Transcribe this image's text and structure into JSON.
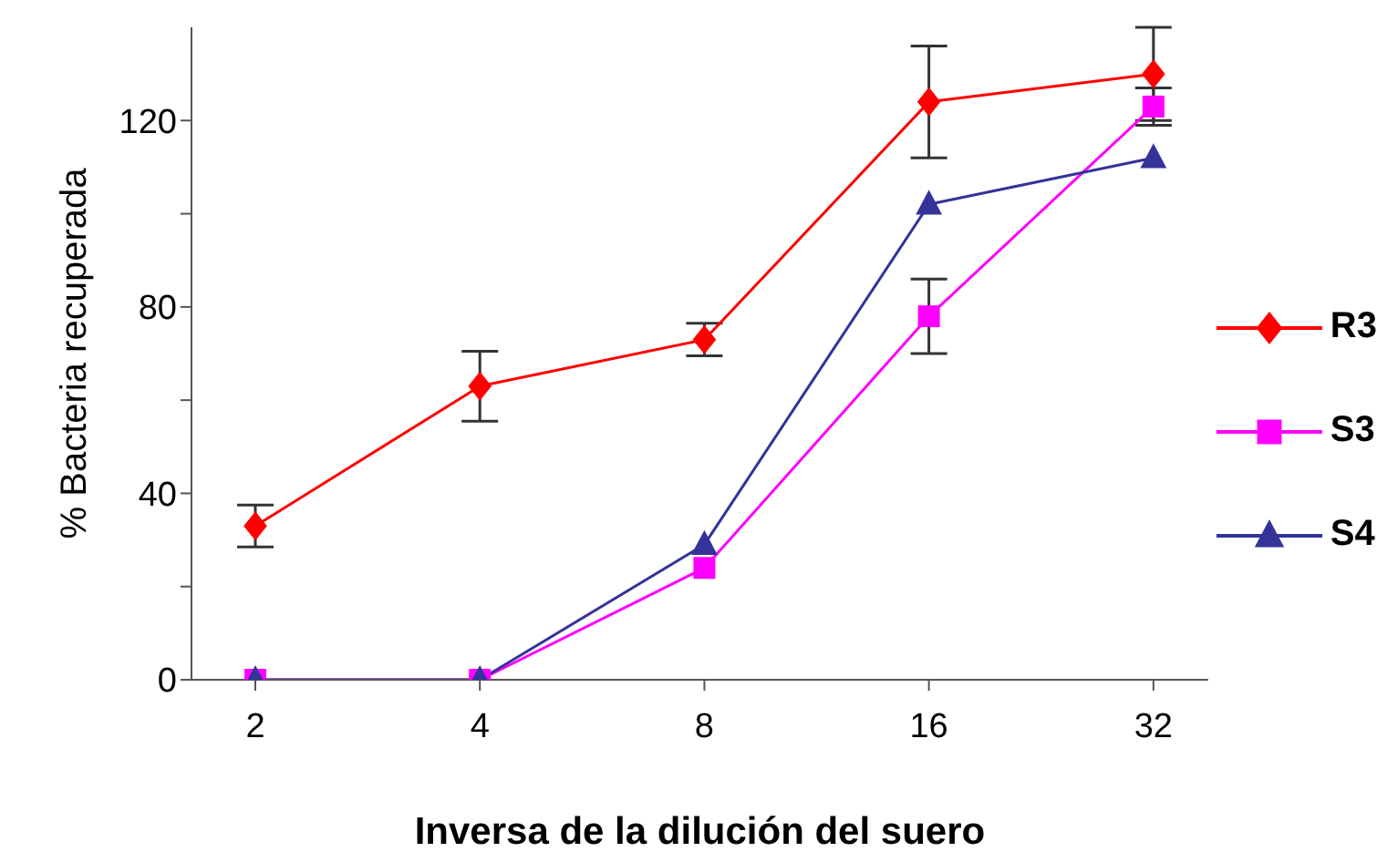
{
  "chart_data": {
    "type": "line",
    "xlabel": "Inversa de la dilución del suero",
    "ylabel": "% Bacteria recuperada",
    "categories": [
      "2",
      "4",
      "8",
      "16",
      "32"
    ],
    "ylim": [
      0,
      140
    ],
    "yticks": [
      0,
      {
        "value": 20,
        "label": null
      },
      40,
      {
        "value": 60,
        "label": null
      },
      80,
      {
        "value": 100,
        "label": null
      },
      120
    ],
    "grid": false,
    "legend": "right",
    "line_style": "solid",
    "series": [
      {
        "name": "R3",
        "color": "#ff0000",
        "marker": "diamond",
        "values": [
          33,
          63,
          73,
          124,
          130
        ],
        "errors": [
          4.5,
          7.5,
          3.5,
          12,
          10
        ]
      },
      {
        "name": "S3",
        "color": "#ff00ff",
        "marker": "square",
        "values": [
          0,
          0,
          24,
          78,
          123
        ],
        "errors": [
          null,
          null,
          null,
          8,
          4
        ]
      },
      {
        "name": "S4",
        "color": "#333399",
        "marker": "triangle",
        "values": [
          0,
          0,
          29,
          102,
          112
        ]
      }
    ]
  }
}
